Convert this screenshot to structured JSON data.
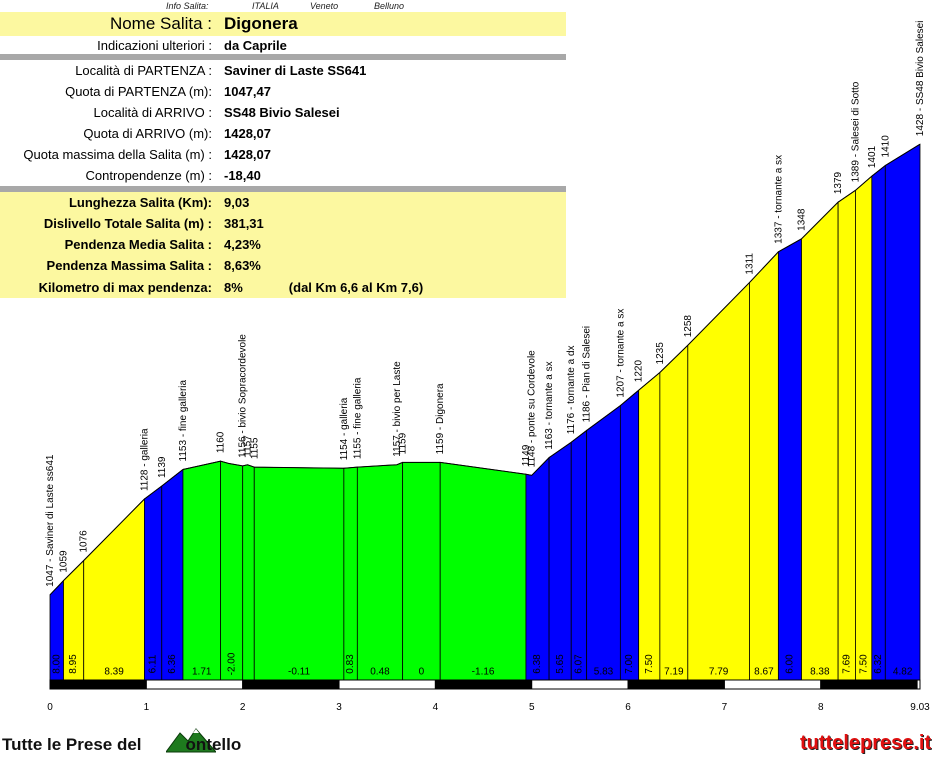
{
  "info_top": {
    "label": "Info Salita:",
    "country": "ITALIA",
    "region": "Veneto",
    "province": "Belluno"
  },
  "info_rows": [
    {
      "label": "Nome Salita :",
      "value": "Digonera"
    },
    {
      "label": "Indicazioni ulteriori :",
      "value": "da Caprile"
    },
    {
      "label": "Località di PARTENZA :",
      "value": "Saviner di Laste SS641"
    },
    {
      "label": "Quota di PARTENZA (m):",
      "value": "1047,47"
    },
    {
      "label": "Località di ARRIVO :",
      "value": "SS48 Bivio Salesei"
    },
    {
      "label": "Quota di ARRIVO (m):",
      "value": "1428,07"
    },
    {
      "label": "Quota massima della Salita (m) :",
      "value": "1428,07"
    },
    {
      "label": "Contropendenze (m) :",
      "value": "-18,40"
    },
    {
      "label": "Lunghezza Salita (Km):",
      "value": "9,03"
    },
    {
      "label": "Dislivello Totale Salita (m) :",
      "value": "381,31"
    },
    {
      "label": "Pendenza Media Salita :",
      "value": "4,23%"
    },
    {
      "label": "Pendenza Massima Salita :",
      "value": "8,63%"
    },
    {
      "label": "Kilometro di max pendenza:",
      "value": "8%",
      "extra": "(dal Km 6,6 al Km 7,6)"
    }
  ],
  "chart_data": {
    "type": "area",
    "xlabel": "",
    "ylabel": "",
    "x_ticks": [
      "0",
      "1",
      "2",
      "3",
      "4",
      "5",
      "6",
      "7",
      "8",
      "9.03"
    ],
    "xlim": [
      0,
      9.03
    ],
    "ylim": [
      975,
      1440
    ],
    "profile": [
      {
        "x": 0.0,
        "y": 1047
      },
      {
        "x": 0.14,
        "y": 1059
      },
      {
        "x": 0.35,
        "y": 1076
      },
      {
        "x": 0.98,
        "y": 1128
      },
      {
        "x": 1.16,
        "y": 1139
      },
      {
        "x": 1.38,
        "y": 1153
      },
      {
        "x": 1.77,
        "y": 1160
      },
      {
        "x": 1.86,
        "y": 1158
      },
      {
        "x": 2.0,
        "y": 1156
      },
      {
        "x": 2.05,
        "y": 1157
      },
      {
        "x": 2.12,
        "y": 1155
      },
      {
        "x": 3.05,
        "y": 1154
      },
      {
        "x": 3.19,
        "y": 1155
      },
      {
        "x": 3.6,
        "y": 1157
      },
      {
        "x": 3.66,
        "y": 1159
      },
      {
        "x": 4.05,
        "y": 1159
      },
      {
        "x": 4.94,
        "y": 1149
      },
      {
        "x": 5.0,
        "y": 1148
      },
      {
        "x": 5.18,
        "y": 1163
      },
      {
        "x": 5.41,
        "y": 1176
      },
      {
        "x": 5.57,
        "y": 1186
      },
      {
        "x": 5.92,
        "y": 1207
      },
      {
        "x": 6.11,
        "y": 1220
      },
      {
        "x": 6.33,
        "y": 1235
      },
      {
        "x": 6.62,
        "y": 1258
      },
      {
        "x": 7.26,
        "y": 1311
      },
      {
        "x": 7.56,
        "y": 1337
      },
      {
        "x": 7.8,
        "y": 1348
      },
      {
        "x": 8.18,
        "y": 1379
      },
      {
        "x": 8.36,
        "y": 1389
      },
      {
        "x": 8.53,
        "y": 1401
      },
      {
        "x": 8.67,
        "y": 1410
      },
      {
        "x": 9.03,
        "y": 1428
      }
    ],
    "segments": [
      {
        "start": 0.0,
        "end": 0.14,
        "grade": "8.00",
        "color": "blue"
      },
      {
        "start": 0.14,
        "end": 0.35,
        "grade": "8.95",
        "color": "yellow"
      },
      {
        "start": 0.35,
        "end": 0.98,
        "grade": "8.39",
        "color": "yellow"
      },
      {
        "start": 0.98,
        "end": 1.16,
        "grade": "6.11",
        "color": "blue"
      },
      {
        "start": 1.16,
        "end": 1.38,
        "grade": "6.36",
        "color": "blue"
      },
      {
        "start": 1.38,
        "end": 1.77,
        "grade": "1.71",
        "color": "green"
      },
      {
        "start": 1.77,
        "end": 2.0,
        "grade": "-2.00",
        "color": "green"
      },
      {
        "start": 2.0,
        "end": 2.12,
        "grade": "",
        "color": "green"
      },
      {
        "start": 2.12,
        "end": 3.05,
        "grade": "-0.11",
        "color": "green"
      },
      {
        "start": 3.05,
        "end": 3.19,
        "grade": "0.83",
        "color": "green"
      },
      {
        "start": 3.19,
        "end": 3.66,
        "grade": "0.48",
        "color": "green"
      },
      {
        "start": 3.66,
        "end": 4.05,
        "grade": "0",
        "color": "green"
      },
      {
        "start": 4.05,
        "end": 4.94,
        "grade": "-1.16",
        "color": "green"
      },
      {
        "start": 4.94,
        "end": 5.18,
        "grade": "6.38",
        "color": "blue"
      },
      {
        "start": 5.18,
        "end": 5.41,
        "grade": "5.65",
        "color": "blue"
      },
      {
        "start": 5.41,
        "end": 5.57,
        "grade": "6.07",
        "color": "blue"
      },
      {
        "start": 5.57,
        "end": 5.92,
        "grade": "5.83",
        "color": "blue"
      },
      {
        "start": 5.92,
        "end": 6.11,
        "grade": "7.00",
        "color": "blue"
      },
      {
        "start": 6.11,
        "end": 6.33,
        "grade": "7.50",
        "color": "yellow"
      },
      {
        "start": 6.33,
        "end": 6.62,
        "grade": "7.19",
        "color": "yellow"
      },
      {
        "start": 6.62,
        "end": 7.26,
        "grade": "7.79",
        "color": "yellow"
      },
      {
        "start": 7.26,
        "end": 7.56,
        "grade": "8.67",
        "color": "yellow"
      },
      {
        "start": 7.56,
        "end": 7.8,
        "grade": "6.00",
        "color": "blue"
      },
      {
        "start": 7.8,
        "end": 8.18,
        "grade": "8.38",
        "color": "yellow"
      },
      {
        "start": 8.18,
        "end": 8.36,
        "grade": "7.69",
        "color": "yellow"
      },
      {
        "start": 8.36,
        "end": 8.53,
        "grade": "7.50",
        "color": "yellow"
      },
      {
        "start": 8.53,
        "end": 8.67,
        "grade": "6.32",
        "color": "blue"
      },
      {
        "start": 8.67,
        "end": 9.03,
        "grade": "4.82",
        "color": "blue"
      }
    ],
    "annotations": [
      {
        "x": 0.0,
        "text": "1047 - Saviner di Laste ss641"
      },
      {
        "x": 0.14,
        "text": "1059"
      },
      {
        "x": 0.35,
        "text": "1076"
      },
      {
        "x": 0.98,
        "text": "1128 - galleria"
      },
      {
        "x": 1.16,
        "text": "1139"
      },
      {
        "x": 1.38,
        "text": "1153 - fine galleria"
      },
      {
        "x": 1.77,
        "text": "1160"
      },
      {
        "x": 2.0,
        "text": "1156 - bivio Sopracordevole"
      },
      {
        "x": 2.05,
        "text": "1157"
      },
      {
        "x": 2.12,
        "text": "1155"
      },
      {
        "x": 3.05,
        "text": "1154 - galleria"
      },
      {
        "x": 3.19,
        "text": "1155 - fine galleria"
      },
      {
        "x": 3.6,
        "text": "1157 - bivio per Laste"
      },
      {
        "x": 3.66,
        "text": "1159"
      },
      {
        "x": 4.05,
        "text": "1159 - Digonera"
      },
      {
        "x": 4.94,
        "text": "1149"
      },
      {
        "x": 5.0,
        "text": "1148 - ponte su Cordevole"
      },
      {
        "x": 5.18,
        "text": "1163 - tornante a sx"
      },
      {
        "x": 5.41,
        "text": "1176 - tornante a dx"
      },
      {
        "x": 5.57,
        "text": "1186 - Pian di Salesei"
      },
      {
        "x": 5.92,
        "text": "1207 - tornante a sx"
      },
      {
        "x": 6.11,
        "text": "1220"
      },
      {
        "x": 6.33,
        "text": "1235"
      },
      {
        "x": 6.62,
        "text": "1258"
      },
      {
        "x": 7.26,
        "text": "1311"
      },
      {
        "x": 7.56,
        "text": "1337 - tornante a sx"
      },
      {
        "x": 7.8,
        "text": "1348"
      },
      {
        "x": 8.18,
        "text": "1379"
      },
      {
        "x": 8.36,
        "text": "1389 - Salesei di Sotto"
      },
      {
        "x": 8.53,
        "text": "1401"
      },
      {
        "x": 8.67,
        "text": "1410"
      },
      {
        "x": 9.03,
        "text": "1428 - SS48 Bivio Salesei"
      }
    ],
    "colors": {
      "blue": "#0000ff",
      "yellow": "#ffff00",
      "green": "#00ff00",
      "outline": "#000000"
    }
  },
  "footer": {
    "left_text": "Tutte le Prese del",
    "left_tail": "ontello",
    "right_text": "tutteleprese.it",
    "logo_icon": "mountain-logo-icon"
  }
}
